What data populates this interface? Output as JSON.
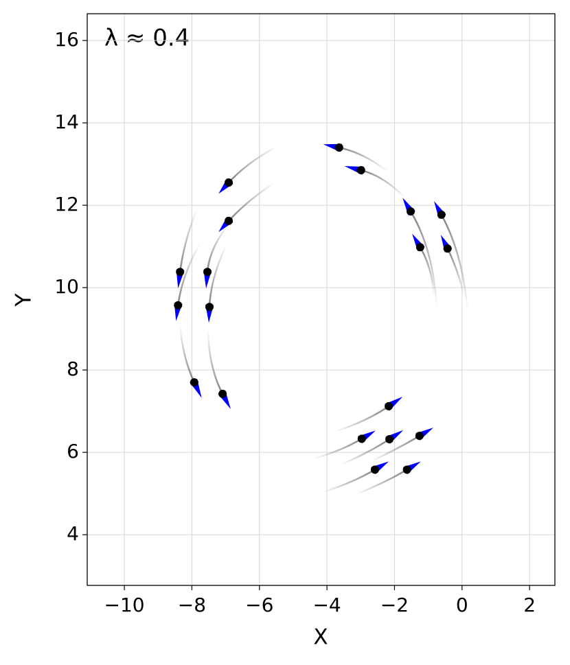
{
  "chart_data": {
    "type": "scatter",
    "annotation": "λ ≈ 0.4",
    "xlabel": "X",
    "ylabel": "Y",
    "xlim": [
      -11.1,
      2.75
    ],
    "ylim": [
      2.77,
      16.65
    ],
    "xticks": [
      {
        "value": -10,
        "label": "−10"
      },
      {
        "value": -8,
        "label": "−8"
      },
      {
        "value": -6,
        "label": "−6"
      },
      {
        "value": -4,
        "label": "−4"
      },
      {
        "value": -2,
        "label": "−2"
      },
      0,
      2
    ],
    "yticks": [
      4,
      6,
      8,
      10,
      12,
      14,
      16
    ],
    "grid": true,
    "color": "#000000",
    "arrow_color": "#0000ff",
    "trail_color": "#808080",
    "x": [
      -6.91,
      -6.91,
      -8.35,
      -8.41,
      -7.93,
      -7.54,
      -7.48,
      -7.09,
      -3.64,
      -2.99,
      -1.52,
      -0.61,
      -1.24,
      -0.43,
      -2.17,
      -2.97,
      -2.15,
      -1.26,
      -2.58,
      -1.63
    ],
    "y": [
      12.55,
      11.62,
      10.38,
      9.57,
      7.7,
      10.38,
      9.53,
      7.42,
      13.4,
      12.85,
      11.85,
      11.77,
      10.98,
      10.95,
      7.12,
      6.33,
      6.32,
      6.4,
      5.58,
      5.58
    ],
    "arrow_dx": [
      -0.3,
      -0.3,
      -0.06,
      -0.06,
      0.22,
      -0.04,
      -0.02,
      0.24,
      -0.47,
      -0.49,
      -0.24,
      -0.22,
      -0.24,
      -0.2,
      0.41,
      0.41,
      0.41,
      0.41,
      0.41,
      0.41
    ],
    "arrow_dy": [
      -0.27,
      -0.27,
      -0.4,
      -0.38,
      -0.38,
      -0.4,
      -0.38,
      -0.37,
      0.08,
      0.1,
      0.33,
      0.33,
      0.33,
      0.33,
      0.23,
      0.2,
      0.22,
      0.2,
      0.2,
      0.2
    ],
    "trail_start_x": [
      -5.49,
      -5.55,
      -7.85,
      -7.76,
      -8.35,
      -6.93,
      -6.97,
      -7.52,
      -2.2,
      -1.69,
      -0.75,
      0.16,
      -0.83,
      0.06,
      -3.78,
      -4.39,
      -3.6,
      -2.7,
      -4.15,
      -3.15
    ],
    "trail_start_y": [
      13.42,
      12.55,
      11.92,
      11.08,
      9.07,
      11.52,
      11.05,
      8.98,
      12.82,
      12.18,
      9.48,
      9.45,
      9.82,
      9.82,
      6.5,
      5.85,
      5.7,
      5.78,
      5.03,
      4.98
    ]
  }
}
